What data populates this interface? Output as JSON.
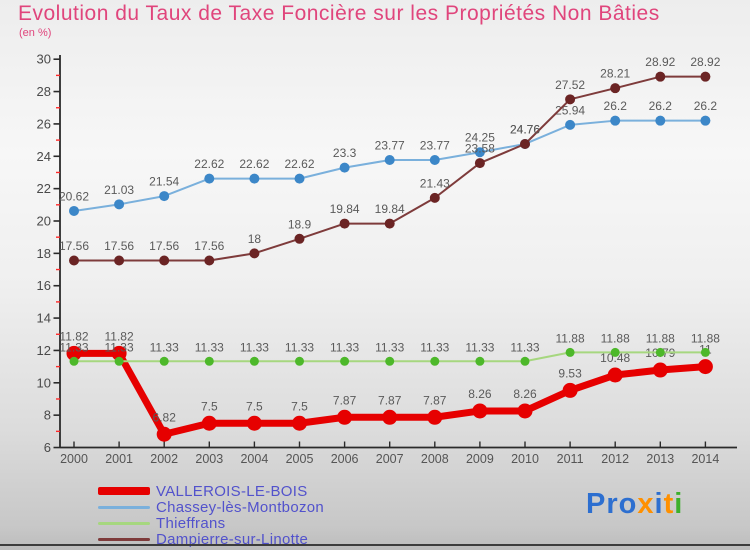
{
  "header": {
    "title": "Evolution du Taux de Taxe Foncière sur les Propriétés Non Bâties",
    "subtitle": "(en %)"
  },
  "chart_data": {
    "type": "line",
    "title": "Evolution du Taux de Taxe Foncière sur les Propriétés Non Bâties",
    "subtitle": "(en %)",
    "x": [
      2000,
      2001,
      2002,
      2003,
      2004,
      2005,
      2006,
      2007,
      2008,
      2009,
      2010,
      2011,
      2012,
      2013,
      2014
    ],
    "ylim": [
      6,
      30
    ],
    "y_major_step": 2,
    "grid": false,
    "legend_position": "bottom-left",
    "series": [
      {
        "name": "VALLEROIS-LE-BOIS",
        "line_color": "#e60000",
        "marker_color": "#e60000",
        "line_width": 7,
        "marker_radius": 7.5,
        "values": [
          11.82,
          11.82,
          6.82,
          7.5,
          7.5,
          7.5,
          7.87,
          7.87,
          7.87,
          8.26,
          8.26,
          9.53,
          10.48,
          10.79,
          11
        ]
      },
      {
        "name": "Chassey-lès-Montbozon",
        "line_color": "#7ab0dc",
        "marker_color": "#3c87c8",
        "line_width": 2,
        "marker_radius": 5,
        "values": [
          20.62,
          21.03,
          21.54,
          22.62,
          22.62,
          22.62,
          23.3,
          23.77,
          23.77,
          24.25,
          24.76,
          25.94,
          26.2,
          26.2,
          26.2
        ]
      },
      {
        "name": "Thieffrans",
        "line_color": "#a6d77f",
        "marker_color": "#4db82a",
        "line_width": 2,
        "marker_radius": 4.5,
        "values": [
          11.33,
          11.33,
          11.33,
          11.33,
          11.33,
          11.33,
          11.33,
          11.33,
          11.33,
          11.33,
          11.33,
          11.88,
          11.88,
          11.88,
          11.88
        ]
      },
      {
        "name": "Dampierre-sur-Linotte",
        "line_color": "#7e3b3b",
        "marker_color": "#6b2424",
        "line_width": 2,
        "marker_radius": 5,
        "values": [
          17.56,
          17.56,
          17.56,
          17.56,
          18,
          18.9,
          19.84,
          19.84,
          21.43,
          23.58,
          24.76,
          27.52,
          28.21,
          28.92,
          28.92
        ]
      }
    ],
    "label_color": "#5a5a5a",
    "axis_color": "#2a2a2a",
    "tick_label_color": "#4a4a4a",
    "minor_tick_color": "#ff2a2a"
  },
  "logo": {
    "name": "Proxiti",
    "letters": [
      {
        "ch": "P",
        "color": "#2d6fd0"
      },
      {
        "ch": "r",
        "color": "#2d6fd0"
      },
      {
        "ch": "o",
        "color": "#2d6fd0"
      },
      {
        "ch": "x",
        "color": "#ff9000"
      },
      {
        "ch": "i",
        "color": "#2d6fd0"
      },
      {
        "ch": "t",
        "color": "#ff9000"
      },
      {
        "ch": "i",
        "color": "#3cb02c"
      }
    ]
  }
}
